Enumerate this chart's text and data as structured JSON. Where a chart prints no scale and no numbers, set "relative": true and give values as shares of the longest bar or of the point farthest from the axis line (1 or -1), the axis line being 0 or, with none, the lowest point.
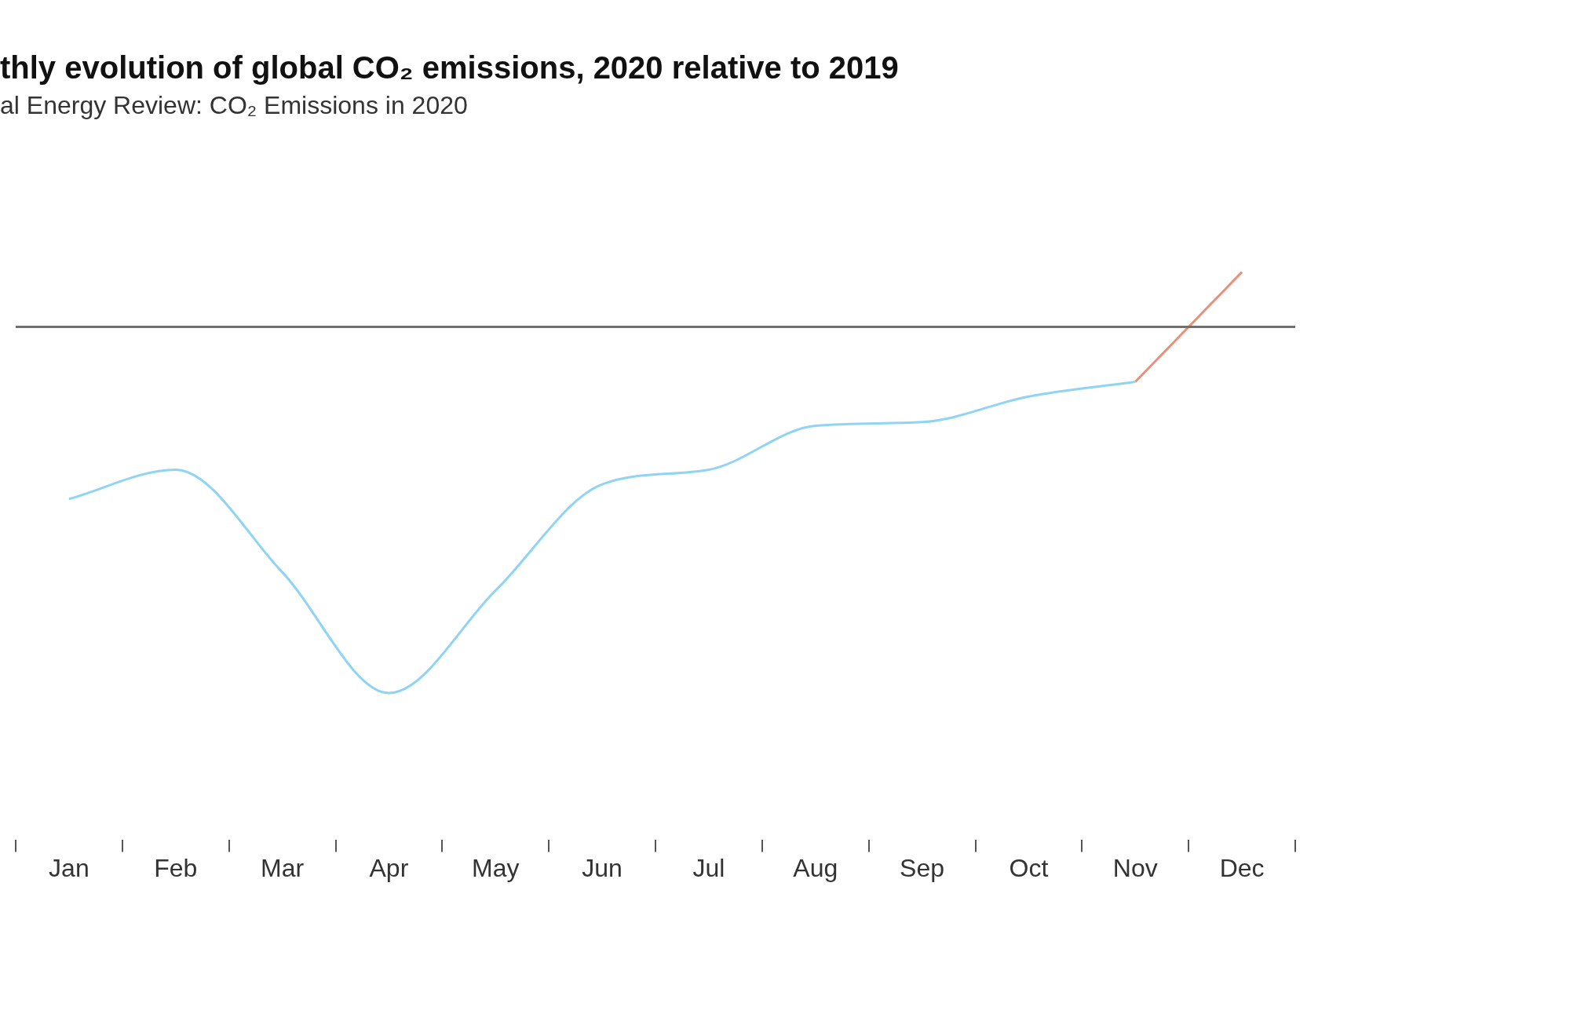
{
  "chart_data": {
    "type": "line",
    "title": "thly evolution of global CO₂ emissions, 2020 relative to 2019",
    "subtitle": "al Energy Review: CO₂ Emissions in 2020",
    "relative": true,
    "categories": [
      "Jan",
      "Feb",
      "Mar",
      "Apr",
      "May",
      "Jun",
      "Jul",
      "Aug",
      "Sep",
      "Oct",
      "Nov",
      "Dec"
    ],
    "series": [
      {
        "color": "#8fd3f5",
        "values": [
          -0.47,
          -0.39,
          -0.67,
          -1,
          -0.72,
          -0.43,
          -0.39,
          -0.27,
          -0.26,
          -0.19,
          -0.15,
          null
        ]
      },
      {
        "color": "#e8907a",
        "values": [
          null,
          null,
          null,
          null,
          null,
          null,
          null,
          null,
          null,
          null,
          -0.15,
          0.15
        ]
      }
    ],
    "ref_lines": [
      {
        "axis": "y",
        "value": 0,
        "color": "#707070"
      }
    ],
    "marker": "none",
    "legend": false,
    "grid": false
  }
}
